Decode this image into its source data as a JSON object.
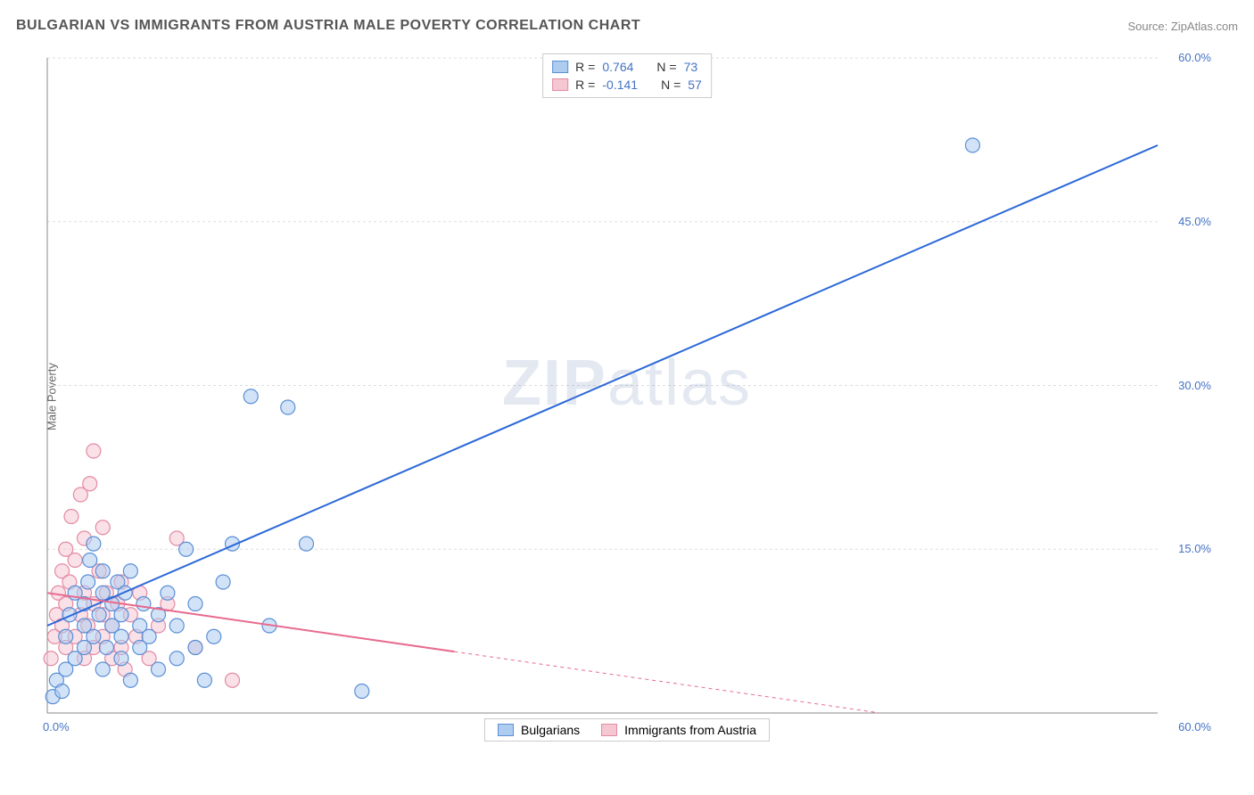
{
  "meta": {
    "title": "BULGARIAN VS IMMIGRANTS FROM AUSTRIA MALE POVERTY CORRELATION CHART",
    "source_label": "Source: ZipAtlas.com",
    "watermark_zip": "ZIP",
    "watermark_atlas": "atlas"
  },
  "chart": {
    "type": "scatter",
    "y_axis_label": "Male Poverty",
    "xlim": [
      0,
      60
    ],
    "ylim": [
      0,
      60
    ],
    "x_tick_labels": [
      "0.0%",
      "60.0%"
    ],
    "y_tick_labels": [
      "15.0%",
      "30.0%",
      "45.0%",
      "60.0%"
    ],
    "y_tick_values": [
      15,
      30,
      45,
      60
    ],
    "grid_color": "#dddddd",
    "axis_color": "#888888",
    "background_color": "#ffffff",
    "marker_radius": 8,
    "marker_stroke_width": 1.2,
    "line_width": 2,
    "series": [
      {
        "name": "Bulgarians",
        "fill_color": "#aeccf0",
        "stroke_color": "#5b8fd6",
        "line_color": "#2b68d8",
        "r_value": "0.764",
        "n_value": "73",
        "trend": {
          "x1": 0,
          "y1": 8,
          "x2": 60,
          "y2": 52,
          "solid_until_x": 60
        },
        "points": [
          [
            0.3,
            1.5
          ],
          [
            0.5,
            3
          ],
          [
            0.8,
            2
          ],
          [
            1,
            4
          ],
          [
            1,
            7
          ],
          [
            1.2,
            9
          ],
          [
            1.5,
            5
          ],
          [
            1.5,
            11
          ],
          [
            2,
            6
          ],
          [
            2,
            8
          ],
          [
            2,
            10
          ],
          [
            2.2,
            12
          ],
          [
            2.3,
            14
          ],
          [
            2.5,
            7
          ],
          [
            2.5,
            15.5
          ],
          [
            2.8,
            9
          ],
          [
            3,
            4
          ],
          [
            3,
            11
          ],
          [
            3,
            13
          ],
          [
            3.2,
            6
          ],
          [
            3.5,
            8
          ],
          [
            3.5,
            10
          ],
          [
            3.8,
            12
          ],
          [
            4,
            5
          ],
          [
            4,
            7
          ],
          [
            4,
            9
          ],
          [
            4.2,
            11
          ],
          [
            4.5,
            3
          ],
          [
            4.5,
            13
          ],
          [
            5,
            6
          ],
          [
            5,
            8
          ],
          [
            5.2,
            10
          ],
          [
            5.5,
            7
          ],
          [
            6,
            4
          ],
          [
            6,
            9
          ],
          [
            6.5,
            11
          ],
          [
            7,
            5
          ],
          [
            7,
            8
          ],
          [
            7.5,
            15
          ],
          [
            8,
            6
          ],
          [
            8,
            10
          ],
          [
            8.5,
            3
          ],
          [
            9,
            7
          ],
          [
            9.5,
            12
          ],
          [
            10,
            15.5
          ],
          [
            11,
            29
          ],
          [
            12,
            8
          ],
          [
            13,
            28
          ],
          [
            14,
            15.5
          ],
          [
            17,
            2
          ],
          [
            50,
            52
          ]
        ]
      },
      {
        "name": "Immigrants from Austria",
        "fill_color": "#f5c7d3",
        "stroke_color": "#e38ba4",
        "line_color": "#e76b8f",
        "r_value": "-0.141",
        "n_value": "57",
        "trend": {
          "x1": 0,
          "y1": 11,
          "x2": 45,
          "y2": 0,
          "solid_until_x": 22
        },
        "points": [
          [
            0.2,
            5
          ],
          [
            0.4,
            7
          ],
          [
            0.5,
            9
          ],
          [
            0.6,
            11
          ],
          [
            0.8,
            8
          ],
          [
            0.8,
            13
          ],
          [
            1,
            6
          ],
          [
            1,
            10
          ],
          [
            1,
            15
          ],
          [
            1.2,
            12
          ],
          [
            1.3,
            18
          ],
          [
            1.5,
            7
          ],
          [
            1.5,
            14
          ],
          [
            1.8,
            9
          ],
          [
            1.8,
            20
          ],
          [
            2,
            5
          ],
          [
            2,
            11
          ],
          [
            2,
            16
          ],
          [
            2.2,
            8
          ],
          [
            2.3,
            21
          ],
          [
            2.5,
            6
          ],
          [
            2.5,
            10
          ],
          [
            2.5,
            24
          ],
          [
            2.8,
            13
          ],
          [
            3,
            7
          ],
          [
            3,
            9
          ],
          [
            3,
            17
          ],
          [
            3.2,
            11
          ],
          [
            3.5,
            5
          ],
          [
            3.5,
            8
          ],
          [
            3.8,
            10
          ],
          [
            4,
            6
          ],
          [
            4,
            12
          ],
          [
            4.2,
            4
          ],
          [
            4.5,
            9
          ],
          [
            4.8,
            7
          ],
          [
            5,
            11
          ],
          [
            5.5,
            5
          ],
          [
            6,
            8
          ],
          [
            6.5,
            10
          ],
          [
            7,
            16
          ],
          [
            8,
            6
          ],
          [
            10,
            3
          ]
        ]
      }
    ],
    "legend_top": {
      "border_color": "#cccccc",
      "r_label": "R  =",
      "n_label": "N  ="
    },
    "legend_bottom": {
      "border_color": "#cccccc",
      "items": [
        "Bulgarians",
        "Immigrants from Austria"
      ]
    }
  }
}
